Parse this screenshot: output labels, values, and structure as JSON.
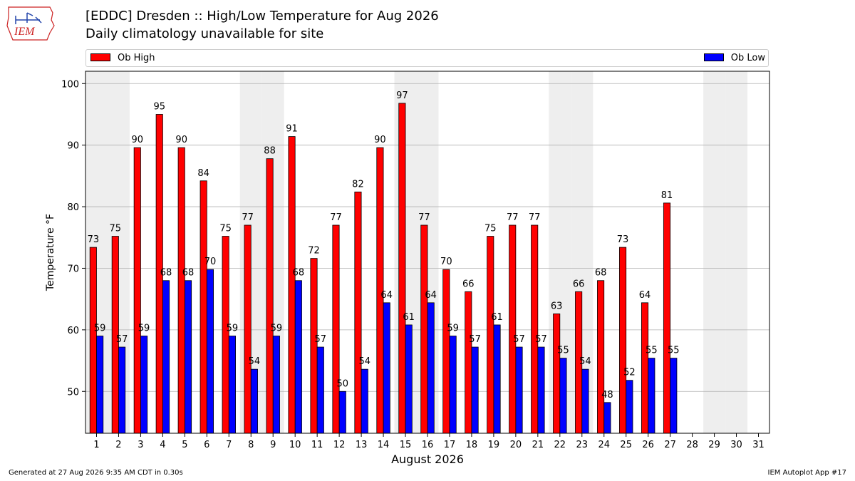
{
  "logo": {
    "text": "IEM"
  },
  "header": {
    "title": "[EDDC] Dresden :: High/Low Temperature for Aug 2026",
    "subtitle": "Daily climatology unavailable for site"
  },
  "colors": {
    "high": "#ff0000",
    "low": "#0000ff",
    "weekend_band": "#eeeeee",
    "grid": "#b0b0b0"
  },
  "chart_data": {
    "type": "bar",
    "categories": [
      "1",
      "2",
      "3",
      "4",
      "5",
      "6",
      "7",
      "8",
      "9",
      "10",
      "11",
      "12",
      "13",
      "14",
      "15",
      "16",
      "17",
      "18",
      "19",
      "20",
      "21",
      "22",
      "23",
      "24",
      "25",
      "26",
      "27",
      "28",
      "29",
      "30",
      "31"
    ],
    "series": [
      {
        "name": "Ob High",
        "values": [
          73,
          75,
          90,
          95,
          90,
          84,
          75,
          77,
          88,
          91,
          72,
          77,
          82,
          90,
          97,
          77,
          70,
          66,
          75,
          77,
          77,
          63,
          66,
          68,
          73,
          64,
          81,
          null,
          null,
          null,
          null
        ]
      },
      {
        "name": "Ob Low",
        "values": [
          59,
          57,
          59,
          68,
          68,
          70,
          59,
          54,
          59,
          68,
          57,
          50,
          54,
          64,
          61,
          64,
          59,
          57,
          61,
          57,
          57,
          55,
          54,
          48,
          52,
          55,
          55,
          null,
          null,
          null,
          null
        ]
      }
    ],
    "precise_high": [
      73.4,
      75.2,
      89.6,
      95.0,
      89.6,
      84.2,
      75.2,
      77.0,
      87.8,
      91.4,
      71.6,
      77.0,
      82.4,
      89.6,
      96.8,
      77.0,
      69.8,
      66.2,
      75.2,
      77.0,
      77.0,
      62.6,
      66.2,
      68.0,
      73.4,
      64.4,
      80.6,
      null,
      null,
      null,
      null
    ],
    "precise_low": [
      59.0,
      57.2,
      59.0,
      68.0,
      68.0,
      69.8,
      59.0,
      53.6,
      59.0,
      68.0,
      57.2,
      50.0,
      53.6,
      64.4,
      60.8,
      64.4,
      59.0,
      57.2,
      60.8,
      57.2,
      57.2,
      55.4,
      53.6,
      48.2,
      51.8,
      55.4,
      55.4,
      null,
      null,
      null,
      null
    ],
    "weekend_days": [
      1,
      2,
      8,
      9,
      15,
      16,
      22,
      23,
      29,
      30
    ],
    "xlabel": "August 2026",
    "ylabel": "Temperature °F",
    "ylim": [
      43.2,
      102
    ],
    "yticks": [
      50,
      60,
      70,
      80,
      90,
      100
    ],
    "grid": true,
    "legend": "top"
  },
  "footer": {
    "generated": "Generated at 27 Aug 2026 9:35 AM CDT in 0.30s",
    "app": "IEM Autoplot App #17"
  }
}
